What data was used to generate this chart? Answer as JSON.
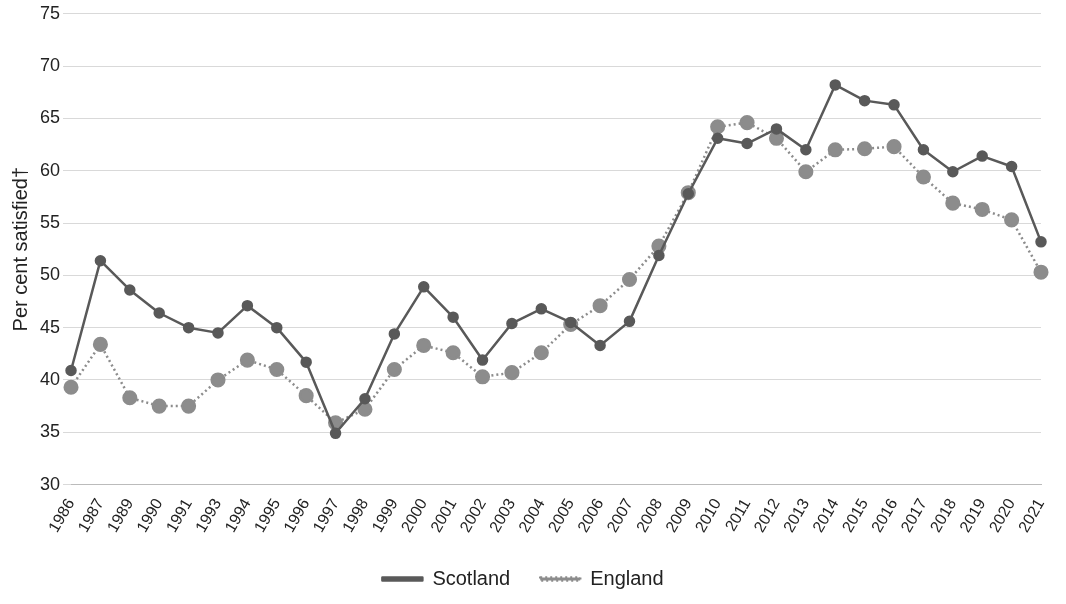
{
  "chart_data": {
    "type": "line",
    "ylabel": "Per cent satisfied†",
    "categories": [
      "1986",
      "1987",
      "1989",
      "1990",
      "1991",
      "1993",
      "1994",
      "1995",
      "1996",
      "1997",
      "1998",
      "1999",
      "2000",
      "2001",
      "2002",
      "2003",
      "2004",
      "2005",
      "2006",
      "2007",
      "2008",
      "2009",
      "2010",
      "2011",
      "2012",
      "2013",
      "2014",
      "2015",
      "2016",
      "2017",
      "2018",
      "2019",
      "2020",
      "2021"
    ],
    "series": [
      {
        "name": "Scotland",
        "color": "#595959",
        "line_style": "solid",
        "values": [
          40.9,
          51.4,
          48.6,
          46.4,
          45.0,
          44.5,
          47.1,
          45.0,
          41.7,
          34.9,
          38.2,
          44.4,
          48.9,
          46.0,
          41.9,
          45.4,
          46.8,
          45.5,
          43.3,
          45.6,
          51.9,
          57.8,
          63.1,
          62.6,
          64.0,
          62.0,
          68.2,
          66.7,
          66.3,
          62.0,
          59.9,
          61.4,
          60.4,
          53.2
        ]
      },
      {
        "name": "England",
        "color": "#8c8c8c",
        "line_style": "dotted",
        "values": [
          39.3,
          43.4,
          38.3,
          37.5,
          37.5,
          40.0,
          41.9,
          41.0,
          38.5,
          35.9,
          37.2,
          41.0,
          43.3,
          42.6,
          40.3,
          40.7,
          42.6,
          45.3,
          47.1,
          49.6,
          52.8,
          57.9,
          64.2,
          64.6,
          63.1,
          59.9,
          62.0,
          62.1,
          62.3,
          59.4,
          56.9,
          56.3,
          55.3,
          50.3
        ]
      }
    ],
    "ylim": [
      30,
      75
    ],
    "yticks": [
      30,
      35,
      40,
      45,
      50,
      55,
      60,
      65,
      70,
      75
    ],
    "grid": "y",
    "legend": "bottom",
    "marker": "circle"
  }
}
